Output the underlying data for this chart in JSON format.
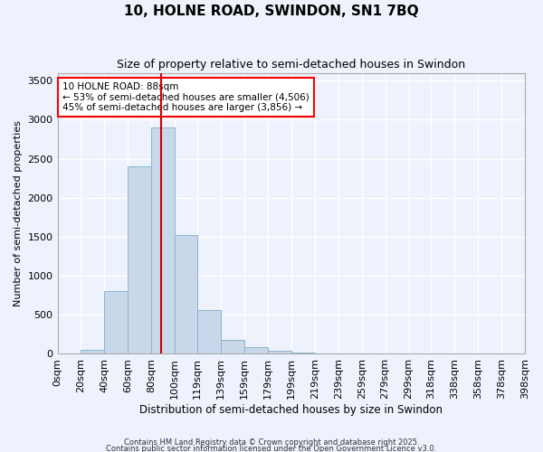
{
  "title": "10, HOLNE ROAD, SWINDON, SN1 7BQ",
  "subtitle": "Size of property relative to semi-detached houses in Swindon",
  "xlabel": "Distribution of semi-detached houses by size in Swindon",
  "ylabel": "Number of semi-detached properties",
  "bin_edges": [
    0,
    20,
    40,
    60,
    80,
    100,
    119,
    139,
    159,
    179,
    199,
    219,
    239,
    259,
    279,
    299,
    318,
    338,
    358,
    378,
    398
  ],
  "bar_values": [
    10,
    50,
    800,
    2400,
    2900,
    1520,
    560,
    180,
    90,
    40,
    15,
    5,
    2,
    1,
    0,
    0,
    0,
    0,
    0,
    0
  ],
  "bar_labels": [
    "0sqm",
    "20sqm",
    "40sqm",
    "60sqm",
    "80sqm",
    "100sqm",
    "119sqm",
    "139sqm",
    "159sqm",
    "179sqm",
    "199sqm",
    "219sqm",
    "239sqm",
    "259sqm",
    "279sqm",
    "299sqm",
    "318sqm",
    "338sqm",
    "358sqm",
    "378sqm",
    "398sqm"
  ],
  "bar_color": "#c8d8ea",
  "bar_edge_color": "#8ab4cc",
  "property_line_x": 88,
  "property_line_color": "#cc0000",
  "annotation_title": "10 HOLNE ROAD: 88sqm",
  "annotation_line1": "← 53% of semi-detached houses are smaller (4,506)",
  "annotation_line2": "45% of semi-detached houses are larger (3,856) →",
  "ylim": [
    0,
    3600
  ],
  "yticks": [
    0,
    500,
    1000,
    1500,
    2000,
    2500,
    3000,
    3500
  ],
  "background_color": "#eef2fc",
  "grid_color": "#ffffff",
  "footnote1": "Contains HM Land Registry data © Crown copyright and database right 2025.",
  "footnote2": "Contains public sector information licensed under the Open Government Licence v3.0."
}
